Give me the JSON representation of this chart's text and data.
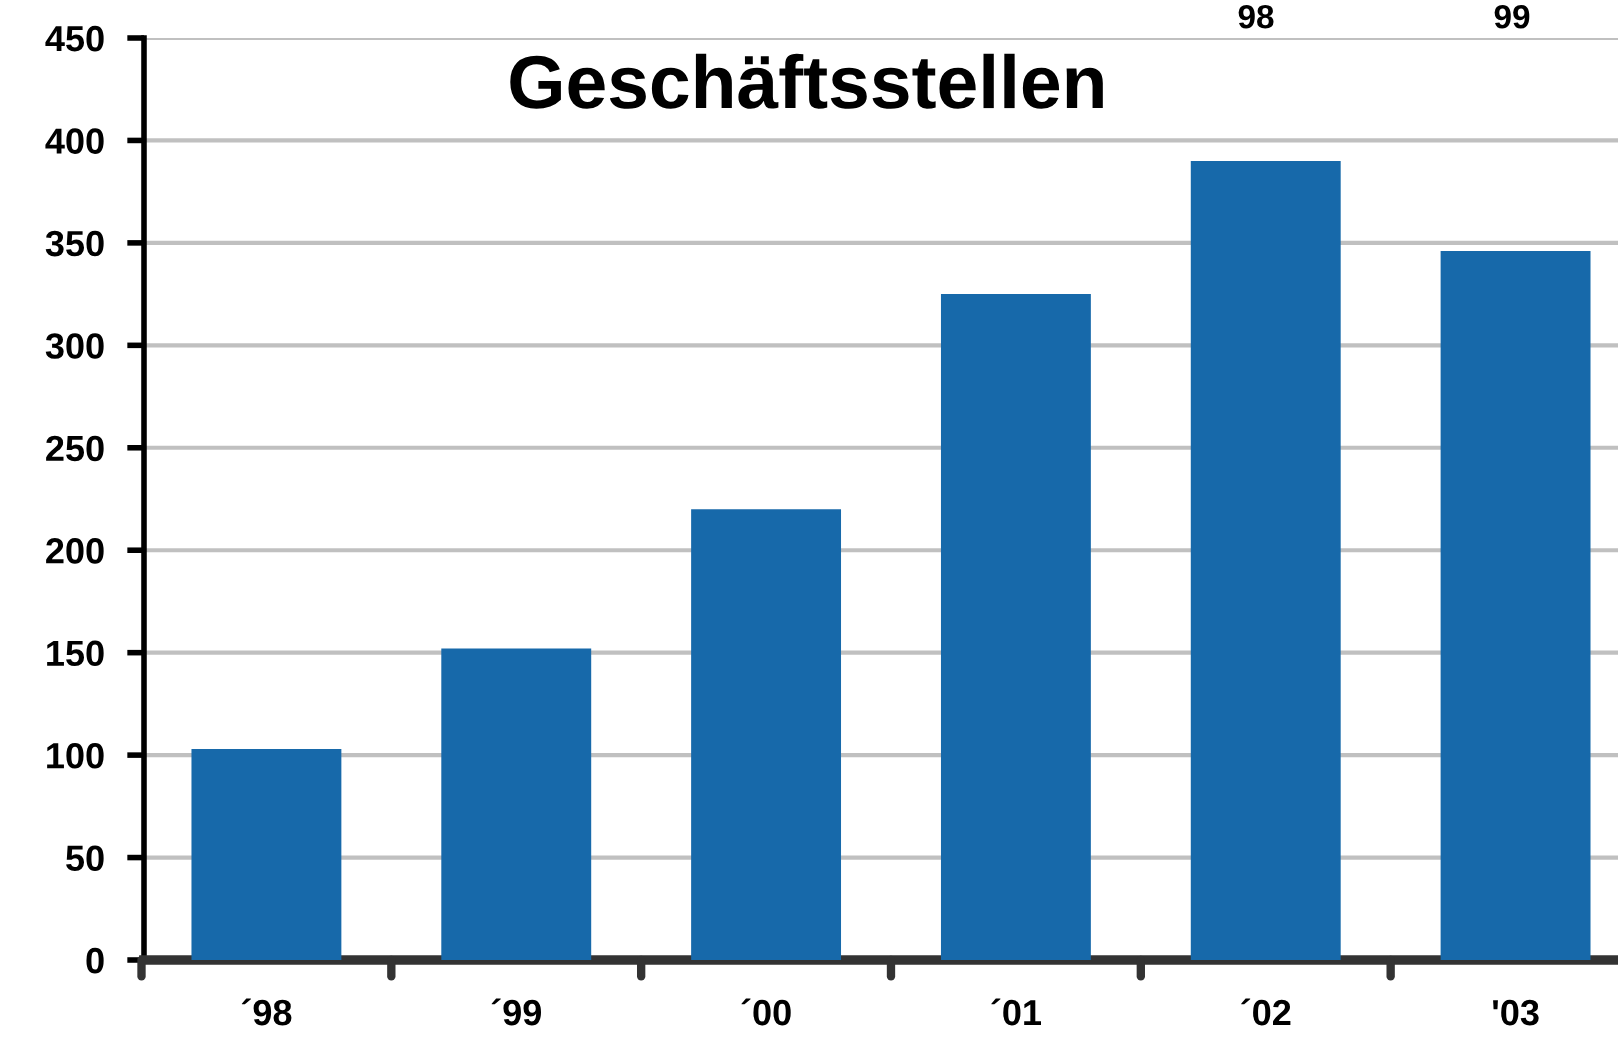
{
  "chart_data": {
    "type": "bar",
    "title": "Geschäftsstellen",
    "categories": [
      "´98",
      "´99",
      "´00",
      "´01",
      "´02",
      "'03"
    ],
    "values": [
      103,
      152,
      220,
      325,
      390,
      346
    ],
    "color": "#1769aa",
    "ylim": [
      0,
      450
    ],
    "yticks": [
      0,
      50,
      100,
      150,
      200,
      250,
      300,
      350,
      400,
      450
    ],
    "grid": "y",
    "annotations": [
      "98",
      "99"
    ]
  }
}
